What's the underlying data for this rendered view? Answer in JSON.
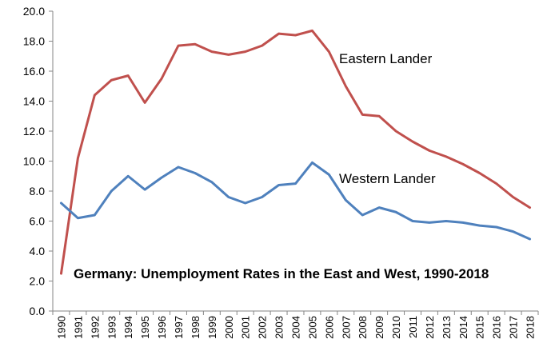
{
  "chart_data": {
    "type": "line",
    "title": "Germany: Unemployment Rates in the East and West, 1990-2018",
    "xlabel": "",
    "ylabel": "",
    "ylim": [
      0,
      20
    ],
    "y_ticks": [
      "0.0",
      "2.0",
      "4.0",
      "6.0",
      "8.0",
      "10.0",
      "12.0",
      "14.0",
      "16.0",
      "18.0",
      "20.0"
    ],
    "grid": false,
    "legend": "none (series labelled inline)",
    "x": [
      "1990",
      "1991",
      "1992",
      "1993",
      "1994",
      "1995",
      "1996",
      "1997",
      "1998",
      "1999",
      "2000",
      "2001",
      "2002",
      "2003",
      "2004",
      "2005",
      "2006",
      "2007",
      "2008",
      "2009",
      "2010",
      "2011",
      "2012",
      "2013",
      "2014",
      "2015",
      "2016",
      "2017",
      "2018"
    ],
    "series": [
      {
        "name": "Eastern Lander",
        "color": "#C0504D",
        "values": [
          2.5,
          10.2,
          14.4,
          15.4,
          15.7,
          13.9,
          15.5,
          17.7,
          17.8,
          17.3,
          17.1,
          17.3,
          17.7,
          18.5,
          18.4,
          18.7,
          17.3,
          15.0,
          13.1,
          13.0,
          12.0,
          11.3,
          10.7,
          10.3,
          9.8,
          9.2,
          8.5,
          7.6,
          6.9
        ]
      },
      {
        "name": "Western Lander",
        "color": "#4F81BD",
        "values": [
          7.2,
          6.2,
          6.4,
          8.0,
          9.0,
          8.1,
          8.9,
          9.6,
          9.2,
          8.6,
          7.6,
          7.2,
          7.6,
          8.4,
          8.5,
          9.9,
          9.1,
          7.4,
          6.4,
          6.9,
          6.6,
          6.0,
          5.9,
          6.0,
          5.9,
          5.7,
          5.6,
          5.3,
          4.8
        ]
      }
    ]
  }
}
